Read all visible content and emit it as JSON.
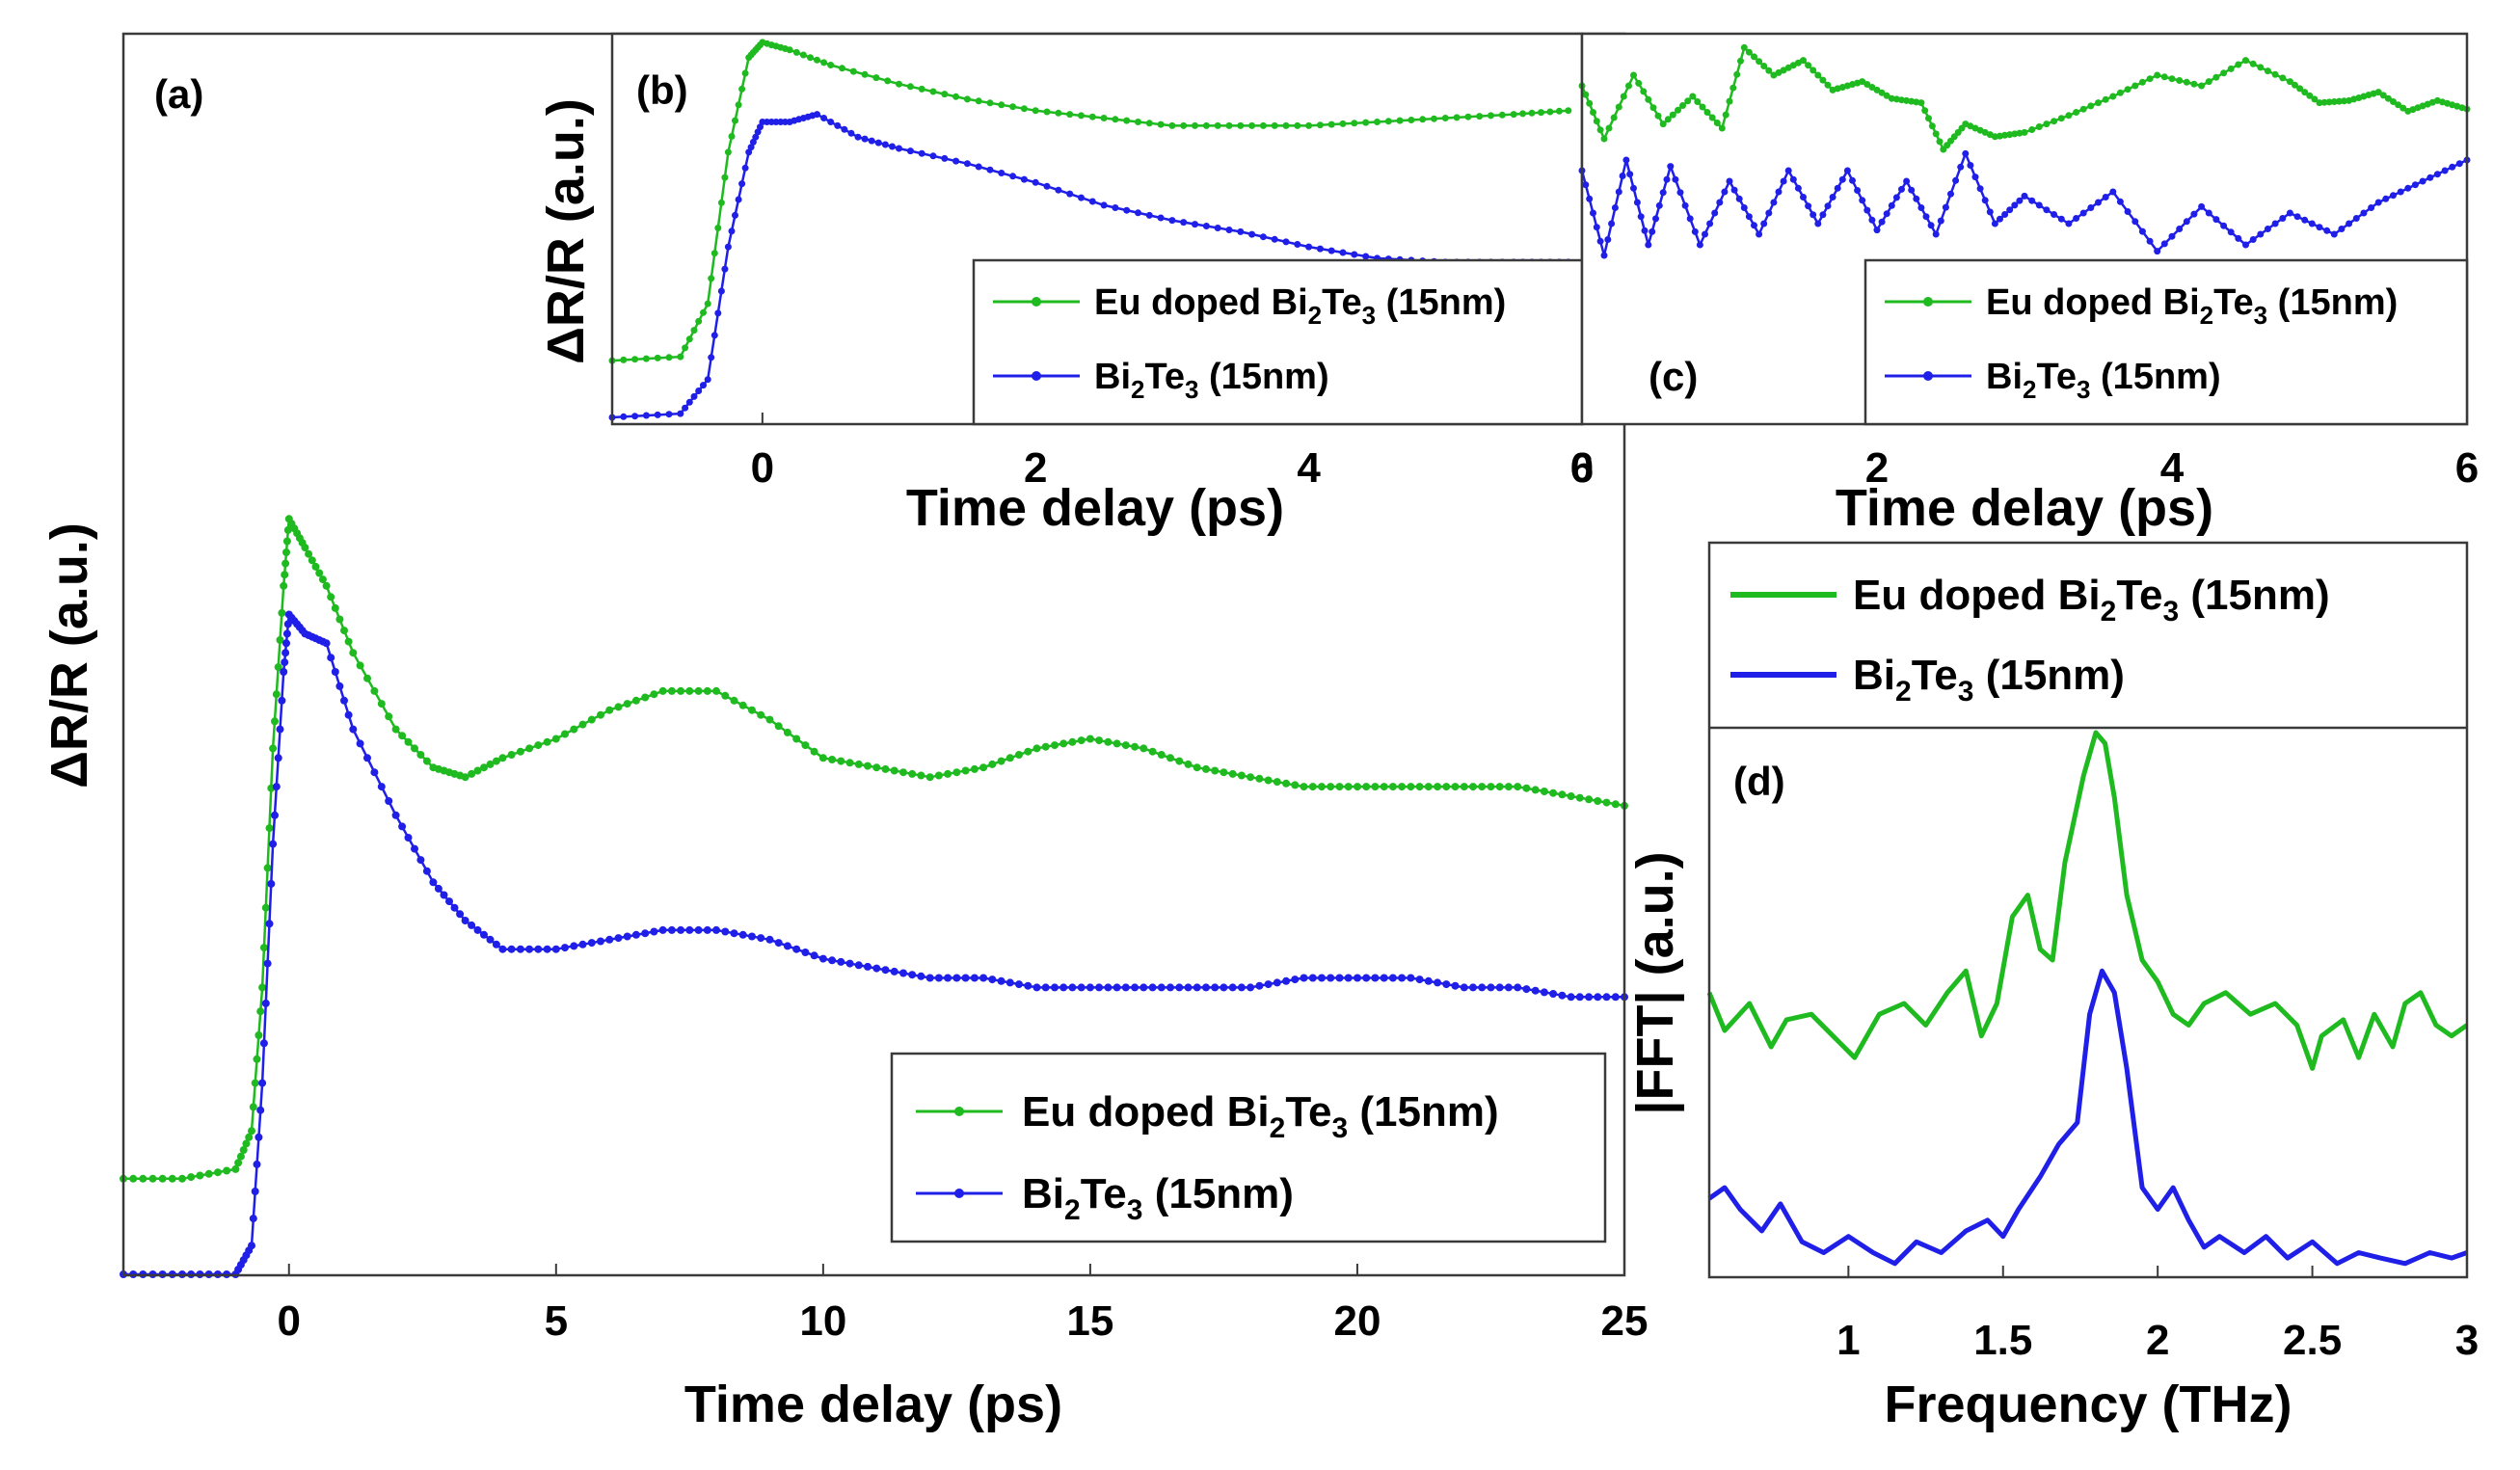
{
  "chart_data": [
    {
      "panel": "(a)",
      "type": "line",
      "xlabel": "Time delay (ps)",
      "ylabel": "ΔR/R (a.u.)",
      "xlim": [
        -3.1,
        25
      ],
      "ylim": [
        0,
        1
      ],
      "xticks": [
        0,
        5,
        10,
        15,
        20,
        25
      ],
      "legend_position": "bottom-right",
      "series": [
        {
          "name": "Eu doped Bi2Te3 (15nm)",
          "legend": {
            "pre": "Eu doped Bi",
            "sub1": "2",
            "mid": "Te",
            "sub2": "3",
            "post": " (15nm)"
          },
          "color": "#1fba1f",
          "x": [
            -3.1,
            -2.0,
            -1.0,
            -0.7,
            -0.5,
            -0.3,
            -0.1,
            0.0,
            0.3,
            0.7,
            1.2,
            2.0,
            2.7,
            3.3,
            4.0,
            5.0,
            6.0,
            7.0,
            8.0,
            9.0,
            10.0,
            11.0,
            12.0,
            13.0,
            14.0,
            15.0,
            16.0,
            17.0,
            18.0,
            19.0,
            20.0,
            21.0,
            22.0,
            23.0,
            24.0,
            25.0
          ],
          "y": [
            0.1,
            0.1,
            0.11,
            0.15,
            0.3,
            0.55,
            0.72,
            0.79,
            0.76,
            0.72,
            0.65,
            0.57,
            0.53,
            0.52,
            0.54,
            0.56,
            0.59,
            0.61,
            0.61,
            0.58,
            0.54,
            0.53,
            0.52,
            0.53,
            0.55,
            0.56,
            0.55,
            0.53,
            0.52,
            0.51,
            0.51,
            0.51,
            0.51,
            0.51,
            0.5,
            0.49
          ]
        },
        {
          "name": "Bi2Te3 (15nm)",
          "legend": {
            "pre": "Bi",
            "sub1": "2",
            "mid": "Te",
            "sub2": "3",
            "post": " (15nm)"
          },
          "color": "#1f1fe8",
          "x": [
            -3.1,
            -2.0,
            -1.0,
            -0.7,
            -0.5,
            -0.3,
            -0.1,
            0.0,
            0.3,
            0.7,
            1.2,
            2.0,
            2.7,
            3.3,
            4.0,
            5.0,
            6.0,
            7.0,
            8.0,
            9.0,
            10.0,
            11.0,
            12.0,
            13.0,
            14.0,
            15.0,
            16.0,
            17.0,
            18.0,
            19.0,
            20.0,
            21.0,
            22.0,
            23.0,
            24.0,
            25.0
          ],
          "y": [
            0.0,
            0.0,
            0.0,
            0.03,
            0.2,
            0.45,
            0.63,
            0.69,
            0.67,
            0.66,
            0.57,
            0.48,
            0.41,
            0.37,
            0.34,
            0.34,
            0.35,
            0.36,
            0.36,
            0.35,
            0.33,
            0.32,
            0.31,
            0.31,
            0.3,
            0.3,
            0.3,
            0.3,
            0.3,
            0.31,
            0.31,
            0.31,
            0.3,
            0.3,
            0.29,
            0.29
          ]
        }
      ]
    },
    {
      "panel": "(b)",
      "type": "line",
      "xlabel": "Time delay (ps)",
      "ylabel": "ΔR/R (a.u.)",
      "xlim": [
        -1.1,
        6
      ],
      "ylim": [
        0,
        1
      ],
      "xticks": [
        0,
        2,
        4,
        6
      ],
      "legend_position": "bottom-right",
      "series": [
        {
          "name": "Eu doped Bi2Te3 (15nm)",
          "legend": {
            "pre": "Eu doped Bi",
            "sub1": "2",
            "mid": "Te",
            "sub2": "3",
            "post": " (15nm)"
          },
          "color": "#1fba1f",
          "x": [
            -1.1,
            -0.6,
            -0.4,
            -0.25,
            -0.1,
            0.0,
            0.2,
            0.5,
            1.0,
            1.5,
            2.0,
            2.5,
            3.0,
            3.5,
            4.0,
            4.5,
            5.0,
            5.5,
            5.9
          ],
          "y": [
            0.15,
            0.16,
            0.3,
            0.7,
            0.95,
            0.99,
            0.97,
            0.93,
            0.88,
            0.84,
            0.81,
            0.79,
            0.77,
            0.77,
            0.77,
            0.78,
            0.79,
            0.8,
            0.81
          ]
        },
        {
          "name": "Bi2Te3 (15nm)",
          "legend": {
            "pre": "Bi",
            "sub1": "2",
            "mid": "Te",
            "sub2": "3",
            "post": " (15nm)"
          },
          "color": "#1f1fe8",
          "x": [
            -1.1,
            -0.6,
            -0.4,
            -0.25,
            -0.1,
            0.0,
            0.2,
            0.4,
            0.7,
            1.0,
            1.5,
            2.0,
            2.5,
            3.0,
            3.5,
            4.0,
            4.5,
            5.0,
            5.5,
            5.9
          ],
          "y": [
            0.0,
            0.01,
            0.1,
            0.45,
            0.7,
            0.78,
            0.78,
            0.8,
            0.74,
            0.71,
            0.67,
            0.62,
            0.56,
            0.52,
            0.49,
            0.45,
            0.42,
            0.41,
            0.41,
            0.41
          ]
        }
      ]
    },
    {
      "panel": "(c)",
      "type": "line",
      "xlabel": "Time delay (ps)",
      "ylabel": "",
      "xlim": [
        0,
        6
      ],
      "ylim": [
        0,
        1
      ],
      "xticks": [
        0,
        2,
        4,
        6
      ],
      "legend_position": "bottom-right",
      "series": [
        {
          "name": "Eu doped Bi2Te3 (15nm)",
          "legend": {
            "pre": "Eu doped Bi",
            "sub1": "2",
            "mid": "Te",
            "sub2": "3",
            "post": " (15nm)"
          },
          "color": "#1fba1f",
          "x": [
            0.0,
            0.15,
            0.35,
            0.55,
            0.75,
            0.95,
            1.1,
            1.3,
            1.5,
            1.7,
            1.9,
            2.1,
            2.3,
            2.45,
            2.6,
            2.8,
            3.0,
            3.3,
            3.6,
            3.9,
            4.2,
            4.5,
            4.8,
            5.0,
            5.2,
            5.4,
            5.6,
            5.8,
            6.0
          ],
          "y": [
            0.8,
            0.55,
            0.85,
            0.62,
            0.75,
            0.6,
            0.98,
            0.85,
            0.92,
            0.78,
            0.82,
            0.74,
            0.72,
            0.5,
            0.62,
            0.56,
            0.58,
            0.66,
            0.75,
            0.85,
            0.8,
            0.92,
            0.82,
            0.72,
            0.73,
            0.77,
            0.68,
            0.73,
            0.69
          ]
        },
        {
          "name": "Bi2Te3 (15nm)",
          "legend": {
            "pre": "Bi",
            "sub1": "2",
            "mid": "Te",
            "sub2": "3",
            "post": " (15nm)"
          },
          "color": "#1f1fe8",
          "x": [
            0.0,
            0.15,
            0.3,
            0.45,
            0.6,
            0.8,
            1.0,
            1.2,
            1.4,
            1.6,
            1.8,
            2.0,
            2.2,
            2.4,
            2.6,
            2.8,
            3.0,
            3.3,
            3.6,
            3.9,
            4.2,
            4.5,
            4.8,
            5.1,
            5.4,
            5.7,
            6.0
          ],
          "y": [
            0.4,
            0.0,
            0.45,
            0.05,
            0.42,
            0.05,
            0.35,
            0.1,
            0.4,
            0.15,
            0.4,
            0.12,
            0.35,
            0.1,
            0.48,
            0.15,
            0.28,
            0.15,
            0.3,
            0.02,
            0.23,
            0.05,
            0.2,
            0.1,
            0.25,
            0.35,
            0.45
          ]
        }
      ]
    },
    {
      "panel": "(d)",
      "type": "line",
      "xlabel": "Frequency (THz)",
      "ylabel": "|FFT| (a.u.)",
      "xlim": [
        0.55,
        3.0
      ],
      "ylim": [
        0,
        1
      ],
      "xticks": [
        1,
        1.5,
        2,
        2.5,
        3
      ],
      "xticklabels": [
        "1",
        "1.5",
        "2",
        "2.5",
        "3"
      ],
      "legend_position": "top",
      "series": [
        {
          "name": "Eu doped Bi2Te3 (15nm)",
          "legend": {
            "pre": "Eu doped Bi",
            "sub1": "2",
            "mid": "Te",
            "sub2": "3",
            "post": " (15nm)"
          },
          "color": "#1fba1f",
          "x": [
            0.55,
            0.6,
            0.68,
            0.75,
            0.8,
            0.88,
            0.95,
            1.02,
            1.1,
            1.18,
            1.25,
            1.32,
            1.38,
            1.43,
            1.48,
            1.53,
            1.58,
            1.62,
            1.66,
            1.7,
            1.76,
            1.8,
            1.83,
            1.86,
            1.9,
            1.95,
            2.0,
            2.05,
            2.1,
            2.15,
            2.22,
            2.3,
            2.38,
            2.45,
            2.5,
            2.53,
            2.6,
            2.65,
            2.7,
            2.76,
            2.8,
            2.85,
            2.9,
            2.95,
            3.0
          ],
          "y": [
            0.52,
            0.45,
            0.5,
            0.42,
            0.47,
            0.48,
            0.44,
            0.4,
            0.48,
            0.5,
            0.46,
            0.52,
            0.56,
            0.44,
            0.5,
            0.66,
            0.7,
            0.6,
            0.58,
            0.76,
            0.92,
            1.0,
            0.98,
            0.88,
            0.7,
            0.58,
            0.54,
            0.48,
            0.46,
            0.5,
            0.52,
            0.48,
            0.5,
            0.46,
            0.38,
            0.44,
            0.47,
            0.4,
            0.48,
            0.42,
            0.5,
            0.52,
            0.46,
            0.44,
            0.46
          ]
        },
        {
          "name": "Bi2Te3 (15nm)",
          "legend": {
            "pre": "Bi",
            "sub1": "2",
            "mid": "Te",
            "sub2": "3",
            "post": " (15nm)"
          },
          "color": "#1f1fe8",
          "x": [
            0.55,
            0.6,
            0.65,
            0.72,
            0.78,
            0.85,
            0.92,
            1.0,
            1.08,
            1.15,
            1.22,
            1.3,
            1.38,
            1.45,
            1.5,
            1.55,
            1.62,
            1.68,
            1.74,
            1.78,
            1.82,
            1.86,
            1.9,
            1.95,
            2.0,
            2.05,
            2.1,
            2.15,
            2.2,
            2.28,
            2.35,
            2.42,
            2.5,
            2.58,
            2.65,
            2.72,
            2.8,
            2.88,
            2.95,
            3.0
          ],
          "y": [
            0.14,
            0.16,
            0.12,
            0.08,
            0.13,
            0.06,
            0.04,
            0.07,
            0.04,
            0.02,
            0.06,
            0.04,
            0.08,
            0.1,
            0.07,
            0.12,
            0.18,
            0.24,
            0.28,
            0.48,
            0.56,
            0.52,
            0.38,
            0.16,
            0.12,
            0.16,
            0.1,
            0.05,
            0.07,
            0.04,
            0.07,
            0.03,
            0.06,
            0.02,
            0.04,
            0.03,
            0.02,
            0.04,
            0.03,
            0.04
          ]
        }
      ]
    }
  ]
}
